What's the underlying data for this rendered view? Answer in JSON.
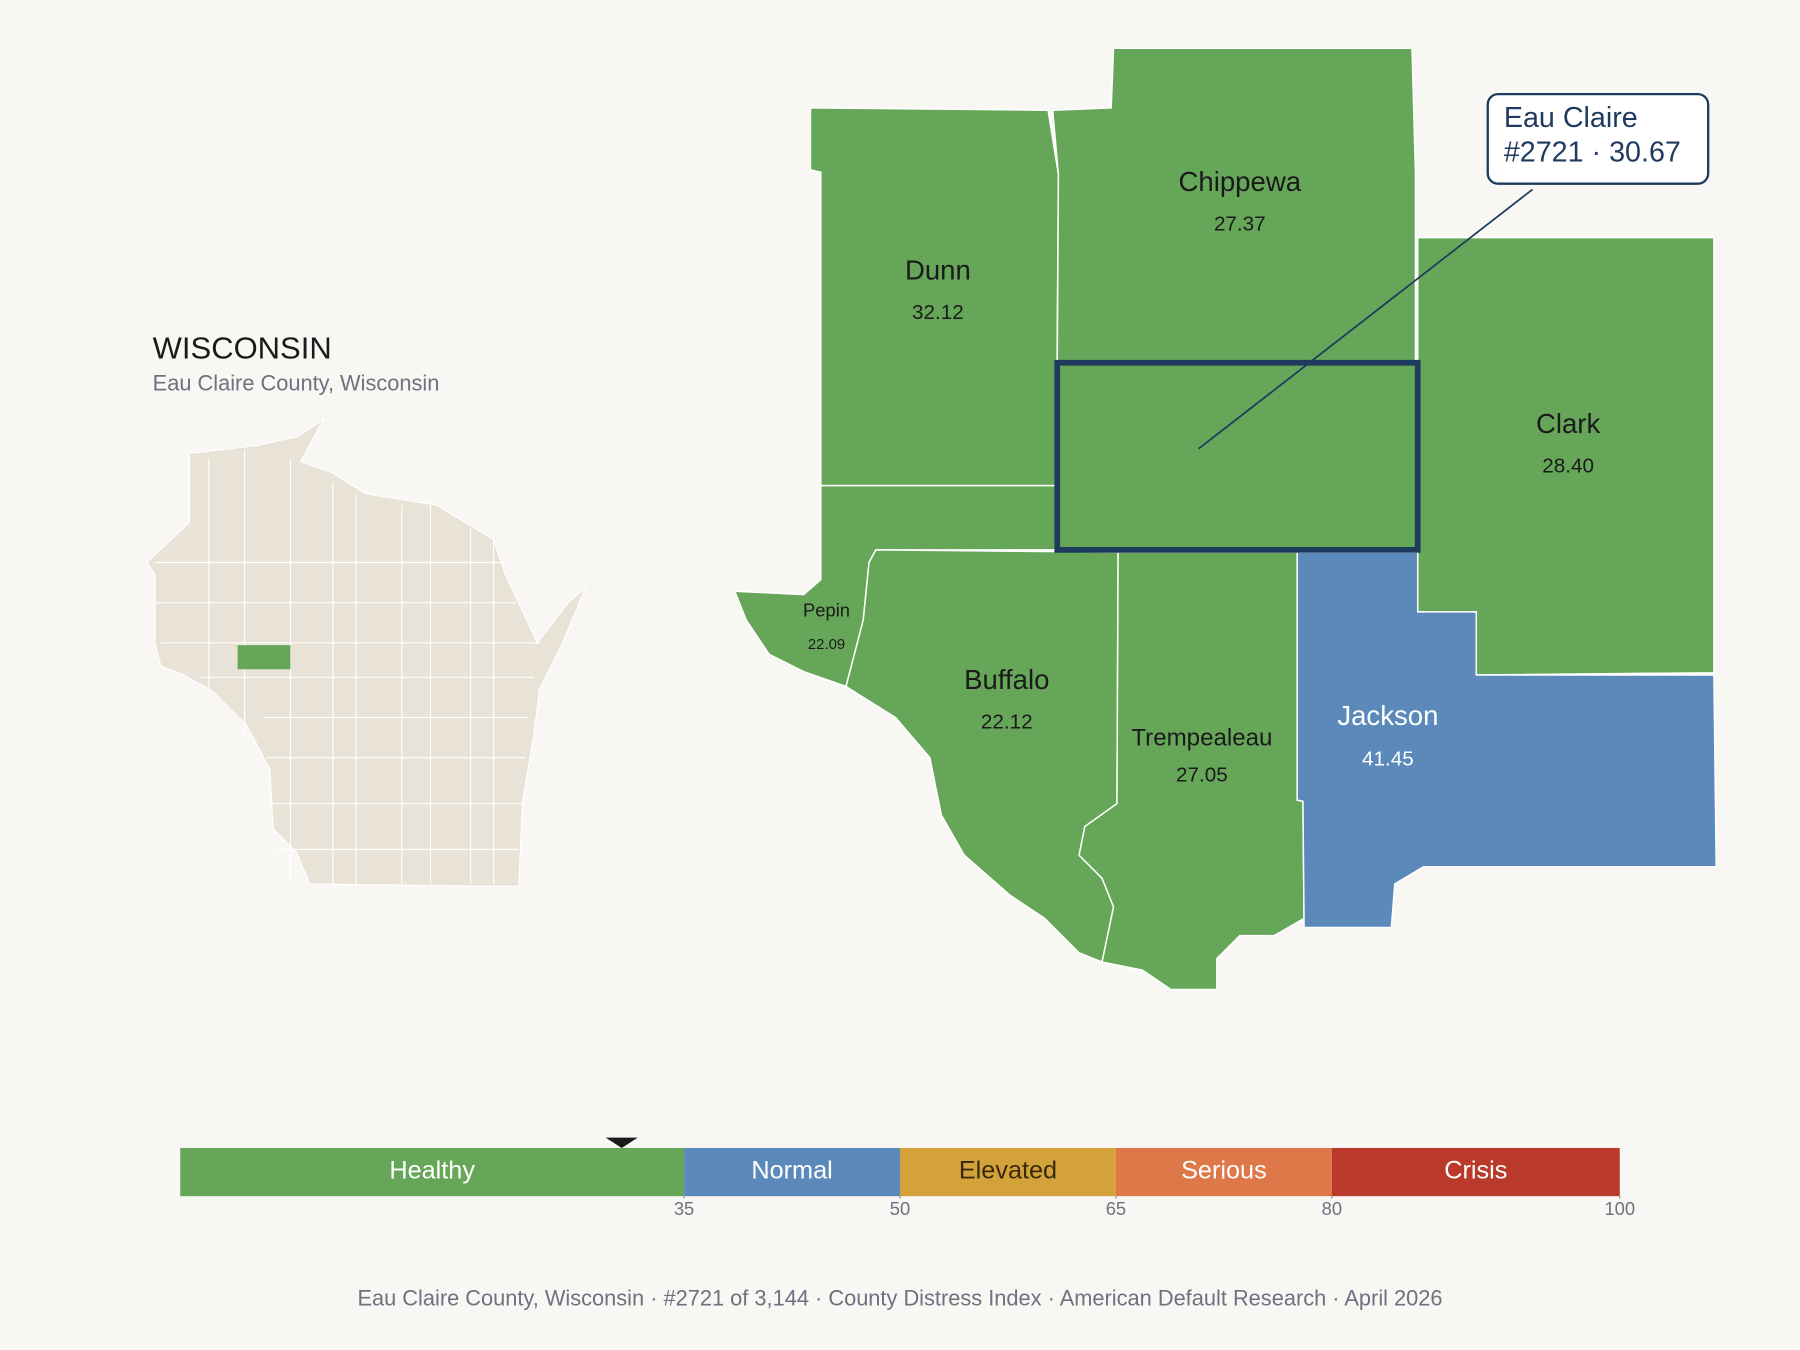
{
  "header": {
    "title": "WISCONSIN",
    "subtitle": "Eau Claire County, Wisconsin"
  },
  "counties": [
    {
      "name": "Dunn",
      "value": "32.12",
      "color": "#66a658"
    },
    {
      "name": "Chippewa",
      "value": "27.37",
      "color": "#66a658"
    },
    {
      "name": "Clark",
      "value": "28.40",
      "color": "#66a658"
    },
    {
      "name": "Pepin",
      "value": "22.09",
      "color": "#66a658"
    },
    {
      "name": "Buffalo",
      "value": "22.12",
      "color": "#66a658"
    },
    {
      "name": "Trempealeau",
      "value": "27.05",
      "color": "#66a658"
    },
    {
      "name": "Jackson",
      "value": "41.45",
      "color": "#5b8aba"
    }
  ],
  "highlight": {
    "color": "#66a658",
    "callout": {
      "name": "Eau Claire",
      "detail": "#2721 · 30.67"
    }
  },
  "scale": {
    "lim": [
      0,
      100
    ],
    "ticks": [
      35,
      50,
      65,
      80,
      100
    ],
    "marker": 30.67,
    "bands": [
      {
        "label": "Healthy",
        "color": "#66a658"
      },
      {
        "label": "Normal",
        "color": "#5b8aba"
      },
      {
        "label": "Elevated",
        "color": "#d4a23a"
      },
      {
        "label": "Serious",
        "color": "#de7848"
      },
      {
        "label": "Crisis",
        "color": "#b93a2b"
      }
    ]
  },
  "footer": "Eau Claire County, Wisconsin  ·  #2721 of 3,144  ·  County Distress Index  ·  American Default Research  ·  April 2026"
}
